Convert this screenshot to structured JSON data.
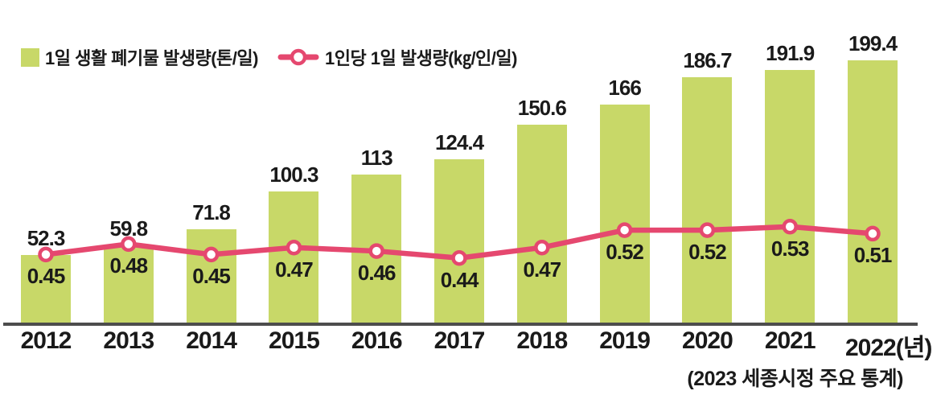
{
  "legend": {
    "bar_label": "1일 생활 폐기물 발생량(톤/일)",
    "line_label": "1인당 1일 발생량(㎏/인/일)"
  },
  "source_note": "(2023 세종시정 주요 통계)",
  "colors": {
    "bar": "#c8d868",
    "line": "#e5486f",
    "marker_fill": "#ffffff",
    "axis": "#4d4d4d",
    "text": "#1a1a1a"
  },
  "chart_data": {
    "type": "bar",
    "title": "",
    "xlabel": "(년)",
    "ylabel": "",
    "categories": [
      "2012",
      "2013",
      "2014",
      "2015",
      "2016",
      "2017",
      "2018",
      "2019",
      "2020",
      "2021",
      "2022"
    ],
    "x_tick_labels": [
      "2012",
      "2013",
      "2014",
      "2015",
      "2016",
      "2017",
      "2018",
      "2019",
      "2020",
      "2021",
      "2022(년)"
    ],
    "series": [
      {
        "name": "1일 생활 폐기물 발생량(톤/일)",
        "type": "bar",
        "values": [
          52.3,
          59.8,
          71.8,
          100.3,
          113,
          124.4,
          150.6,
          166,
          186.7,
          191.9,
          199.4
        ]
      },
      {
        "name": "1인당 1일 발생량(㎏/인/일)",
        "type": "line",
        "values": [
          0.45,
          0.48,
          0.45,
          0.47,
          0.46,
          0.44,
          0.47,
          0.52,
          0.52,
          0.53,
          0.51
        ]
      }
    ],
    "bar_ylim": [
      0,
      230
    ],
    "line_ylim": [
      0.25,
      0.6
    ],
    "grid": false,
    "y_axis_visible": false,
    "legend_position": "top-left",
    "data_labels": true
  }
}
